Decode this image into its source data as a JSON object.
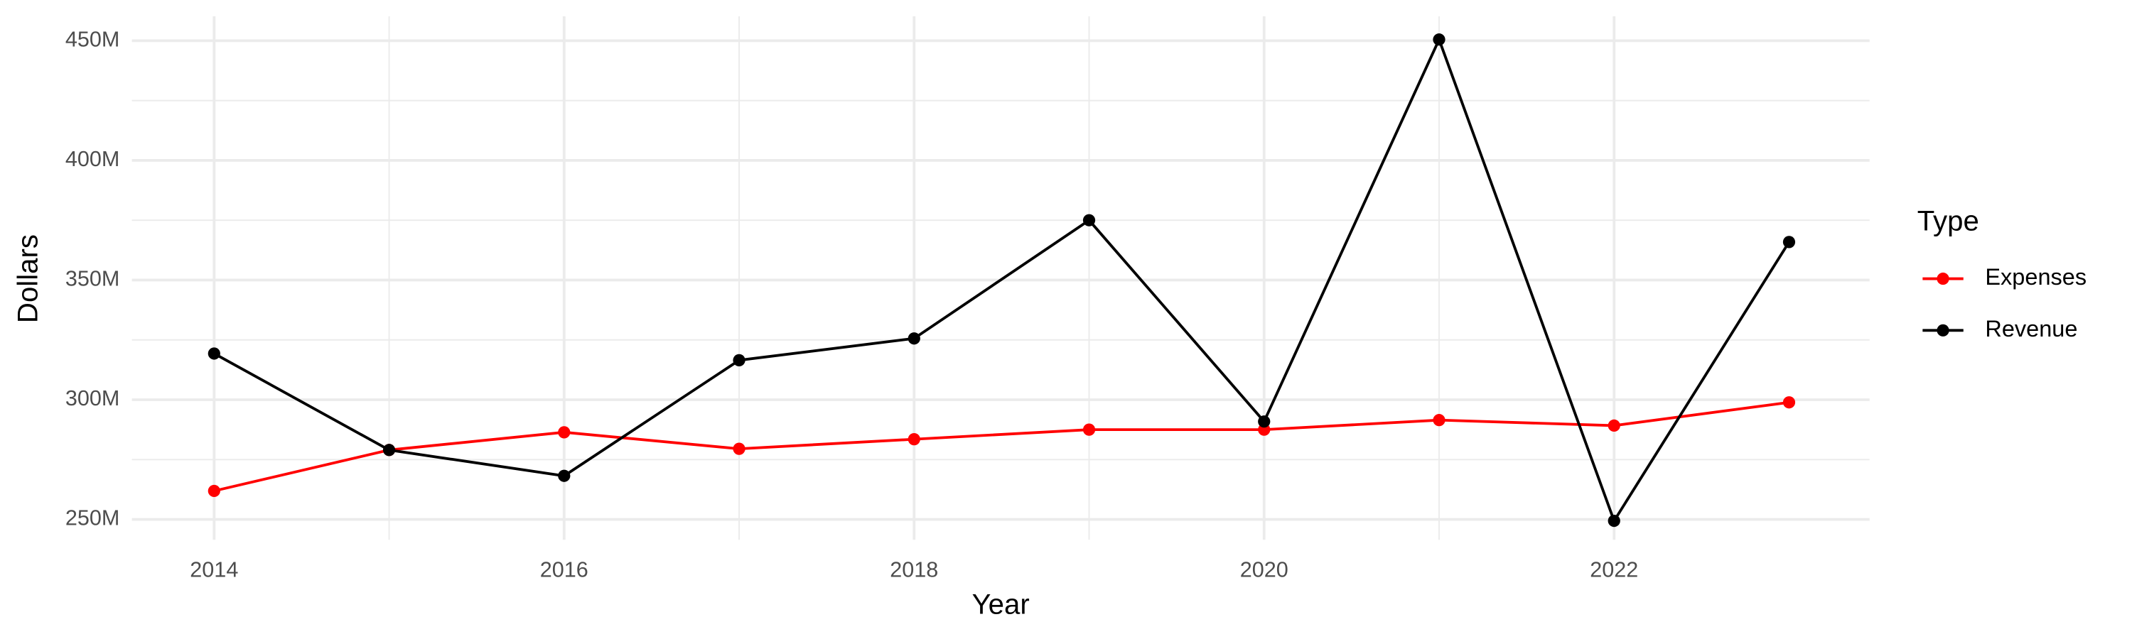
{
  "chart_data": {
    "type": "line",
    "x_label": "Year",
    "y_label": "Dollars",
    "legend_title": "Type",
    "legend": "right",
    "grid": true,
    "x": [
      2014,
      2015,
      2016,
      2017,
      2018,
      2019,
      2020,
      2021,
      2022,
      2023
    ],
    "series": [
      {
        "name": "Expenses",
        "color": "#ff0000",
        "values": [
          261900000,
          279000000,
          286400000,
          279500000,
          283500000,
          287500000,
          287500000,
          291500000,
          289200000,
          298900000
        ]
      },
      {
        "name": "Revenue",
        "color": "#000000",
        "values": [
          319300000,
          279000000,
          268200000,
          316500000,
          325600000,
          375000000,
          290900000,
          450500000,
          249400000,
          365900000
        ]
      }
    ],
    "xlim": [
      2013.53,
      2023.46
    ],
    "xticks": [
      2014,
      2016,
      2018,
      2020,
      2022
    ],
    "ylim": [
      241500000,
      460200000
    ],
    "yticks": [
      {
        "value": 250000000,
        "label": "250M"
      },
      {
        "value": 300000000,
        "label": "300M"
      },
      {
        "value": 350000000,
        "label": "350M"
      },
      {
        "value": 400000000,
        "label": "400M"
      },
      {
        "value": 450000000,
        "label": "450M"
      }
    ]
  }
}
